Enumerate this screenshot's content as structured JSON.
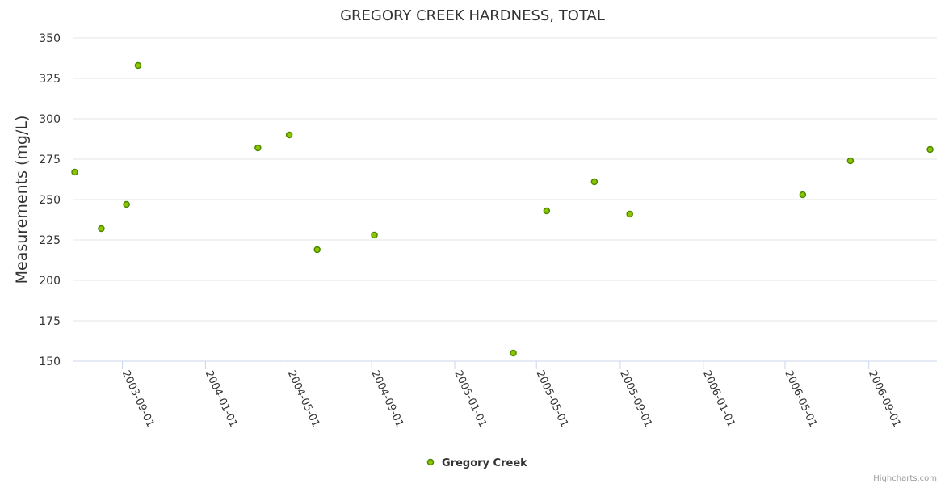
{
  "chart_data": {
    "type": "scatter",
    "title": "GREGORY CREEK HARDNESS, TOTAL",
    "xlabel": "",
    "ylabel": "Measurements (mg/L)",
    "ylim": [
      150,
      350
    ],
    "yticks": [
      150,
      175,
      200,
      225,
      250,
      275,
      300,
      325,
      350
    ],
    "xlim": [
      "2003-06-20",
      "2006-12-10"
    ],
    "xticks": [
      "2003-09-01",
      "2004-01-01",
      "2004-05-01",
      "2004-09-01",
      "2005-01-01",
      "2005-05-01",
      "2005-09-01",
      "2006-01-01",
      "2006-05-01",
      "2006-09-01"
    ],
    "grid": true,
    "legend_position": "bottom-center",
    "series": [
      {
        "name": "Gregory Creek",
        "color": "#8fc400",
        "stroke": "#4a8a00",
        "points": [
          {
            "x": "2003-06-23",
            "y": 267
          },
          {
            "x": "2003-08-01",
            "y": 232
          },
          {
            "x": "2003-09-07",
            "y": 247
          },
          {
            "x": "2003-09-24",
            "y": 333
          },
          {
            "x": "2004-03-18",
            "y": 282
          },
          {
            "x": "2004-05-03",
            "y": 290
          },
          {
            "x": "2004-06-13",
            "y": 219
          },
          {
            "x": "2004-09-05",
            "y": 228
          },
          {
            "x": "2005-03-28",
            "y": 155
          },
          {
            "x": "2005-05-16",
            "y": 243
          },
          {
            "x": "2005-07-25",
            "y": 261
          },
          {
            "x": "2005-09-15",
            "y": 241
          },
          {
            "x": "2006-05-27",
            "y": 253
          },
          {
            "x": "2006-08-05",
            "y": 274
          },
          {
            "x": "2006-11-30",
            "y": 281
          }
        ]
      }
    ]
  },
  "credits": "Highcharts.com"
}
